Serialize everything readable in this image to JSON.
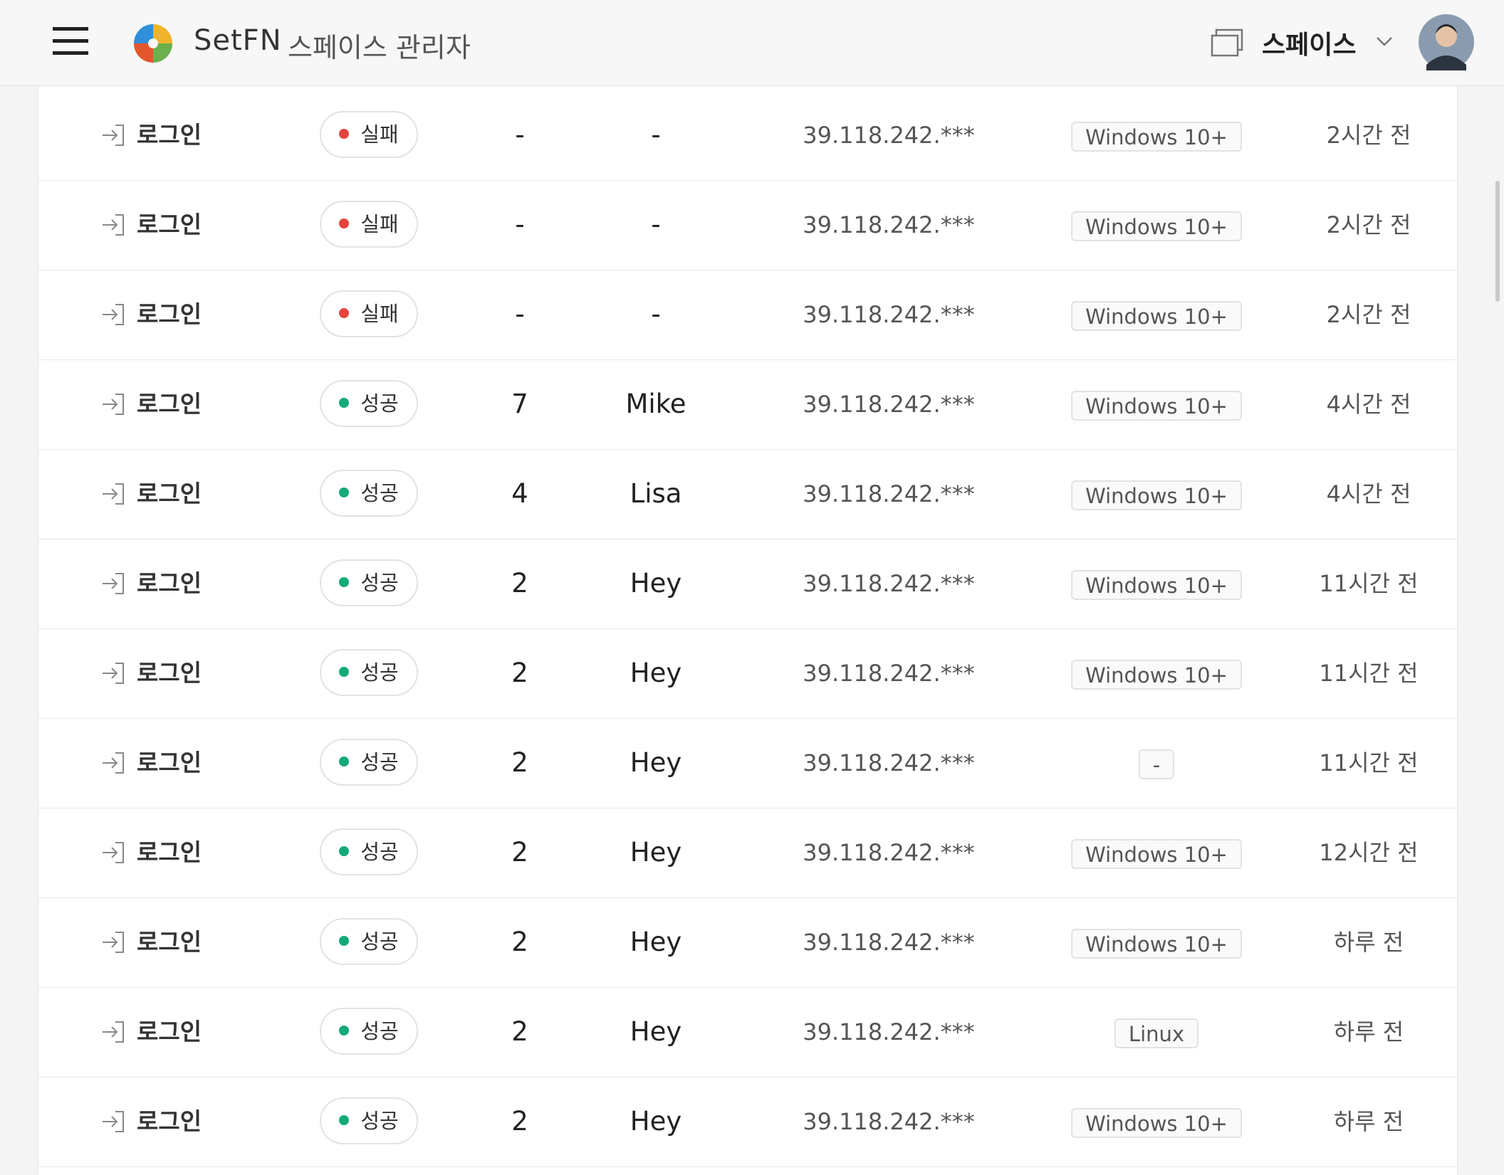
{
  "header": {
    "brand": "SetFN",
    "subtitle": "스페이스 관리자",
    "space_label": "스페이스"
  },
  "table": {
    "rows": [
      {
        "action": "로그인",
        "status": "실패",
        "status_color": "#e5443c",
        "count": "-",
        "name": "-",
        "ip": "39.118.242.***",
        "os": "Windows 10+",
        "time": "2시간 전"
      },
      {
        "action": "로그인",
        "status": "실패",
        "status_color": "#e5443c",
        "count": "-",
        "name": "-",
        "ip": "39.118.242.***",
        "os": "Windows 10+",
        "time": "2시간 전"
      },
      {
        "action": "로그인",
        "status": "실패",
        "status_color": "#e5443c",
        "count": "-",
        "name": "-",
        "ip": "39.118.242.***",
        "os": "Windows 10+",
        "time": "2시간 전"
      },
      {
        "action": "로그인",
        "status": "성공",
        "status_color": "#14a97a",
        "count": 7,
        "name": "Mike",
        "ip": "39.118.242.***",
        "os": "Windows 10+",
        "time": "4시간 전"
      },
      {
        "action": "로그인",
        "status": "성공",
        "status_color": "#14a97a",
        "count": 4,
        "name": "Lisa",
        "ip": "39.118.242.***",
        "os": "Windows 10+",
        "time": "4시간 전"
      },
      {
        "action": "로그인",
        "status": "성공",
        "status_color": "#14a97a",
        "count": 2,
        "name": "Hey",
        "ip": "39.118.242.***",
        "os": "Windows 10+",
        "time": "11시간 전"
      },
      {
        "action": "로그인",
        "status": "성공",
        "status_color": "#14a97a",
        "count": 2,
        "name": "Hey",
        "ip": "39.118.242.***",
        "os": "Windows 10+",
        "time": "11시간 전"
      },
      {
        "action": "로그인",
        "status": "성공",
        "status_color": "#14a97a",
        "count": 2,
        "name": "Hey",
        "ip": "39.118.242.***",
        "os": "-",
        "time": "11시간 전"
      },
      {
        "action": "로그인",
        "status": "성공",
        "status_color": "#14a97a",
        "count": 2,
        "name": "Hey",
        "ip": "39.118.242.***",
        "os": "Windows 10+",
        "time": "12시간 전"
      },
      {
        "action": "로그인",
        "status": "성공",
        "status_color": "#14a97a",
        "count": 2,
        "name": "Hey",
        "ip": "39.118.242.***",
        "os": "Windows 10+",
        "time": "하루 전"
      },
      {
        "action": "로그인",
        "status": "성공",
        "status_color": "#14a97a",
        "count": 2,
        "name": "Hey",
        "ip": "39.118.242.***",
        "os": "Linux",
        "time": "하루 전"
      },
      {
        "action": "로그인",
        "status": "성공",
        "status_color": "#14a97a",
        "count": 2,
        "name": "Hey",
        "ip": "39.118.242.***",
        "os": "Windows 10+",
        "time": "하루 전"
      }
    ]
  }
}
